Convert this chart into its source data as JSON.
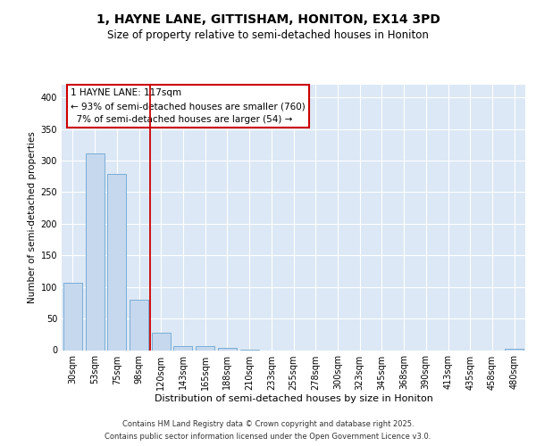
{
  "title1": "1, HAYNE LANE, GITTISHAM, HONITON, EX14 3PD",
  "title2": "Size of property relative to semi-detached houses in Honiton",
  "xlabel": "Distribution of semi-detached houses by size in Honiton",
  "ylabel": "Number of semi-detached properties",
  "categories": [
    "30sqm",
    "53sqm",
    "75sqm",
    "98sqm",
    "120sqm",
    "143sqm",
    "165sqm",
    "188sqm",
    "210sqm",
    "233sqm",
    "255sqm",
    "278sqm",
    "300sqm",
    "323sqm",
    "345sqm",
    "368sqm",
    "390sqm",
    "413sqm",
    "435sqm",
    "458sqm",
    "480sqm"
  ],
  "values": [
    107,
    312,
    279,
    80,
    28,
    6,
    6,
    3,
    1,
    0,
    0,
    0,
    0,
    0,
    0,
    0,
    0,
    0,
    0,
    0,
    2
  ],
  "bar_color": "#c5d8ee",
  "bar_edge_color": "#7aaed6",
  "vline_index": 4,
  "vline_color": "#cc0000",
  "annotation_text": "1 HAYNE LANE: 117sqm\n← 93% of semi-detached houses are smaller (760)\n  7% of semi-detached houses are larger (54) →",
  "annotation_box_facecolor": "#ffffff",
  "annotation_box_edgecolor": "#cc0000",
  "ylim": [
    0,
    420
  ],
  "yticks": [
    0,
    50,
    100,
    150,
    200,
    250,
    300,
    350,
    400
  ],
  "footer1": "Contains HM Land Registry data © Crown copyright and database right 2025.",
  "footer2": "Contains public sector information licensed under the Open Government Licence v3.0.",
  "fig_bg_color": "#ffffff",
  "plot_bg_color": "#dce8f5",
  "grid_color": "#ffffff",
  "title1_fontsize": 10,
  "title2_fontsize": 8.5,
  "xlabel_fontsize": 8,
  "ylabel_fontsize": 7.5,
  "tick_fontsize": 7,
  "annotation_fontsize": 7.5,
  "footer_fontsize": 6
}
